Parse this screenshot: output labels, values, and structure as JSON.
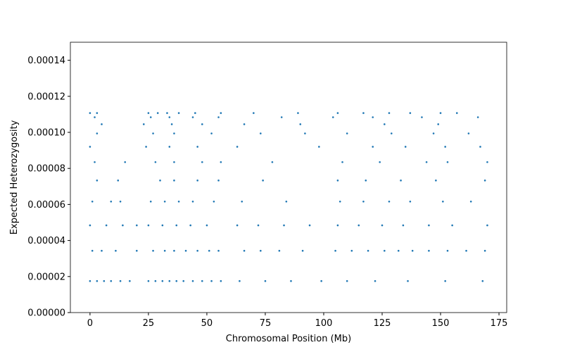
{
  "chart_data": {
    "type": "scatter",
    "xlabel": "Chromosomal Position (Mb)",
    "ylabel": "Expected Heterozygosity",
    "color": "#1f77b4",
    "grid": false,
    "xlim": [
      -8.4,
      178.3
    ],
    "ylim": [
      0,
      0.00015
    ],
    "xticks": [
      0,
      25,
      50,
      75,
      100,
      125,
      150,
      175
    ],
    "yticks": [
      {
        "value": 0,
        "label": "0.00000"
      },
      {
        "value": 2e-05,
        "label": "0.00002"
      },
      {
        "value": 4e-05,
        "label": "0.00004"
      },
      {
        "value": 6e-05,
        "label": "0.00006"
      },
      {
        "value": 8e-05,
        "label": "0.00008"
      },
      {
        "value": 0.0001,
        "label": "0.00010"
      },
      {
        "value": 0.00012,
        "label": "0.00012"
      },
      {
        "value": 0.00014,
        "label": "0.00014"
      }
    ],
    "x": [
      0,
      3,
      6,
      9,
      13,
      17,
      25,
      28,
      31,
      34,
      37,
      40,
      44,
      48,
      52,
      56,
      64,
      75,
      86,
      99,
      110,
      122,
      136,
      152,
      168,
      1,
      5,
      11,
      20,
      27,
      32,
      36,
      41,
      46,
      51,
      55,
      66,
      73,
      81,
      91,
      105,
      112,
      119,
      126,
      132,
      138,
      145,
      153,
      161,
      169,
      0,
      7,
      14,
      20,
      25,
      31,
      37,
      43,
      50,
      63,
      72,
      83,
      94,
      106,
      115,
      125,
      134,
      145,
      155,
      170,
      1,
      9,
      13,
      26,
      32,
      38,
      44,
      53,
      65,
      84,
      107,
      117,
      128,
      137,
      151,
      163,
      3,
      12,
      30,
      36,
      46,
      55,
      74,
      106,
      118,
      133,
      148,
      169,
      2,
      15,
      28,
      36,
      48,
      56,
      78,
      108,
      124,
      144,
      153,
      170,
      0,
      24,
      34,
      46,
      63,
      98,
      121,
      135,
      152,
      167,
      3,
      27,
      36,
      52,
      73,
      92,
      110,
      129,
      147,
      162,
      5,
      23,
      35,
      48,
      66,
      90,
      126,
      149,
      2,
      26,
      34,
      44,
      55,
      82,
      104,
      121,
      142,
      166,
      0,
      3,
      25,
      29,
      33,
      38,
      45,
      56,
      70,
      89,
      106,
      117,
      128,
      137,
      150,
      157
    ],
    "y": [
      1.75e-05,
      1.75e-05,
      1.75e-05,
      1.75e-05,
      1.75e-05,
      1.75e-05,
      1.75e-05,
      1.75e-05,
      1.75e-05,
      1.75e-05,
      1.75e-05,
      1.75e-05,
      1.75e-05,
      1.75e-05,
      1.75e-05,
      1.75e-05,
      1.75e-05,
      1.75e-05,
      1.75e-05,
      1.75e-05,
      1.75e-05,
      1.75e-05,
      1.75e-05,
      1.75e-05,
      1.75e-05,
      3.43e-05,
      3.43e-05,
      3.43e-05,
      3.43e-05,
      3.43e-05,
      3.43e-05,
      3.43e-05,
      3.43e-05,
      3.43e-05,
      3.43e-05,
      3.43e-05,
      3.43e-05,
      3.43e-05,
      3.43e-05,
      3.43e-05,
      3.43e-05,
      3.43e-05,
      3.43e-05,
      3.43e-05,
      3.43e-05,
      3.43e-05,
      3.43e-05,
      3.43e-05,
      3.43e-05,
      3.43e-05,
      4.84e-05,
      4.84e-05,
      4.84e-05,
      4.84e-05,
      4.84e-05,
      4.84e-05,
      4.84e-05,
      4.84e-05,
      4.84e-05,
      4.84e-05,
      4.84e-05,
      4.84e-05,
      4.84e-05,
      4.84e-05,
      4.84e-05,
      4.84e-05,
      4.84e-05,
      4.84e-05,
      4.84e-05,
      4.84e-05,
      6.16e-05,
      6.16e-05,
      6.16e-05,
      6.16e-05,
      6.16e-05,
      6.16e-05,
      6.16e-05,
      6.16e-05,
      6.16e-05,
      6.16e-05,
      6.16e-05,
      6.16e-05,
      6.16e-05,
      6.16e-05,
      6.16e-05,
      6.16e-05,
      7.33e-05,
      7.33e-05,
      7.33e-05,
      7.33e-05,
      7.33e-05,
      7.33e-05,
      7.33e-05,
      7.33e-05,
      7.33e-05,
      7.33e-05,
      7.33e-05,
      7.33e-05,
      8.35e-05,
      8.35e-05,
      8.35e-05,
      8.35e-05,
      8.35e-05,
      8.35e-05,
      8.35e-05,
      8.35e-05,
      8.35e-05,
      8.35e-05,
      8.35e-05,
      8.35e-05,
      9.2e-05,
      9.2e-05,
      9.2e-05,
      9.2e-05,
      9.2e-05,
      9.2e-05,
      9.2e-05,
      9.2e-05,
      9.2e-05,
      9.2e-05,
      9.94e-05,
      9.94e-05,
      9.94e-05,
      9.94e-05,
      9.94e-05,
      9.94e-05,
      9.94e-05,
      9.94e-05,
      9.94e-05,
      9.94e-05,
      0.0001045,
      0.0001045,
      0.0001045,
      0.0001045,
      0.0001045,
      0.0001045,
      0.0001045,
      0.0001045,
      0.0001084,
      0.0001084,
      0.0001084,
      0.0001084,
      0.0001084,
      0.0001084,
      0.0001084,
      0.0001084,
      0.0001084,
      0.0001084,
      0.0001107,
      0.0001107,
      0.0001107,
      0.0001107,
      0.0001107,
      0.0001107,
      0.0001107,
      0.0001107,
      0.0001107,
      0.0001107,
      0.0001107,
      0.0001107,
      0.0001107,
      0.0001107,
      0.0001107,
      0.0001107
    ]
  }
}
